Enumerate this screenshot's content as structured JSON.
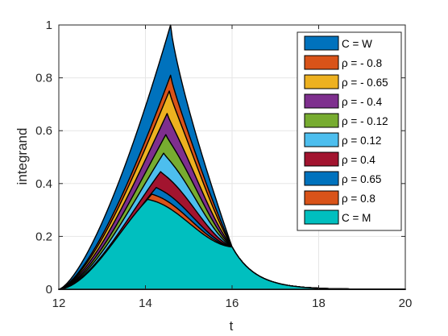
{
  "chart_data": {
    "type": "area",
    "title": "",
    "xlabel": "t",
    "ylabel": "integrand",
    "xlim": [
      12,
      20
    ],
    "ylim": [
      0,
      1
    ],
    "xticks": [
      12,
      14,
      16,
      18,
      20
    ],
    "yticks": [
      0,
      0.2,
      0.4,
      0.6,
      0.8,
      1
    ],
    "grid": true,
    "legend_position": "top-right",
    "shared_curve": {
      "x": [
        12,
        12.5,
        13,
        13.5,
        14,
        14.5,
        16,
        16.5,
        17,
        17.5,
        18,
        18.5,
        19,
        20
      ],
      "y": [
        0,
        0.105,
        0.225,
        0.36,
        0.52,
        0.69,
        0.16,
        0.065,
        0.026,
        0.01,
        0.004,
        0.002,
        0.001,
        0
      ]
    },
    "series": [
      {
        "name": "C = W",
        "color": "#0072BD",
        "peak_t": 14.58,
        "peak": 1.0
      },
      {
        "name": "ρ = - 0.8",
        "color": "#D95319",
        "peak_t": 14.58,
        "peak": 0.81
      },
      {
        "name": "ρ = - 0.65",
        "color": "#EDB120",
        "peak_t": 14.55,
        "peak": 0.75
      },
      {
        "name": "ρ = - 0.4",
        "color": "#7E2F8E",
        "peak_t": 14.5,
        "peak": 0.665
      },
      {
        "name": "ρ = - 0.12",
        "color": "#77AC30",
        "peak_t": 14.47,
        "peak": 0.585
      },
      {
        "name": "ρ = 0.12",
        "color": "#4DBEEE",
        "peak_t": 14.42,
        "peak": 0.515
      },
      {
        "name": "ρ = 0.4",
        "color": "#A2142F",
        "peak_t": 14.35,
        "peak": 0.445
      },
      {
        "name": "ρ = 0.65",
        "color": "#0072BD",
        "peak_t": 14.25,
        "peak": 0.385
      },
      {
        "name": "ρ = 0.8",
        "color": "#D95319",
        "peak_t": 14.15,
        "peak": 0.36
      },
      {
        "name": "C = M",
        "color": "#00BFBF",
        "peak_t": 14.05,
        "peak": 0.34
      }
    ]
  }
}
